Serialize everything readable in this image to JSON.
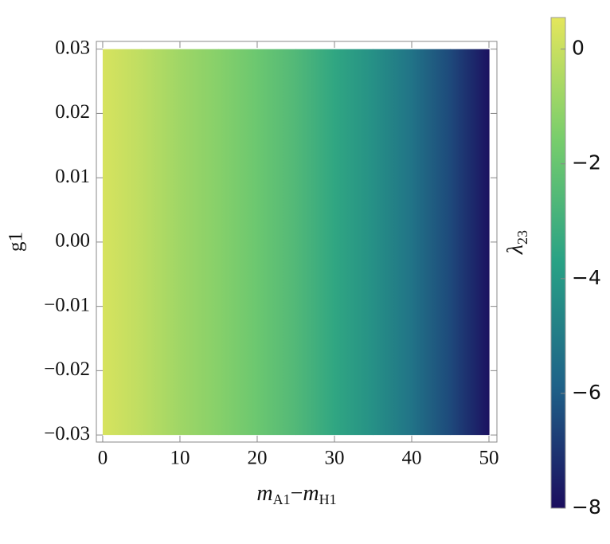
{
  "chart_data": {
    "type": "density",
    "x": [
      0,
      5,
      10,
      15,
      20,
      25,
      30,
      35,
      40,
      45,
      50
    ],
    "values": [
      0.3,
      -0.2,
      -0.8,
      -1.3,
      -1.9,
      -2.6,
      -3.5,
      -4.3,
      -5.3,
      -6.5,
      -7.9
    ],
    "ylim": [
      -0.0311,
      0.0312
    ],
    "y_range": [
      -0.03,
      0.03
    ],
    "xlim": [
      -0.82,
      51.03
    ],
    "xticks": [
      0,
      10,
      20,
      30,
      40,
      50
    ],
    "yticks": [
      {
        "value": -0.03,
        "label": "−0.03"
      },
      {
        "value": -0.02,
        "label": "−0.02"
      },
      {
        "value": -0.01,
        "label": "−0.01"
      },
      {
        "value": 0,
        "label": "0.00"
      },
      0.01,
      0.02,
      0.03
    ],
    "xlabel": [
      "m",
      "A1",
      "−",
      "m",
      "H1"
    ],
    "ylabel": "g1",
    "colorbar_label": [
      "λ",
      "23"
    ],
    "clim": [
      -8,
      0.55
    ],
    "cticks": [
      {
        "value": -8,
        "label": "−8"
      },
      {
        "value": -6,
        "label": "−6"
      },
      {
        "value": -4,
        "label": "−4"
      },
      {
        "value": -2,
        "label": "−2"
      },
      0
    ],
    "colorscale": [
      "#1b0d5e",
      "#1f6288",
      "#28a185",
      "#77cd6c",
      "#e4e65c"
    ]
  }
}
